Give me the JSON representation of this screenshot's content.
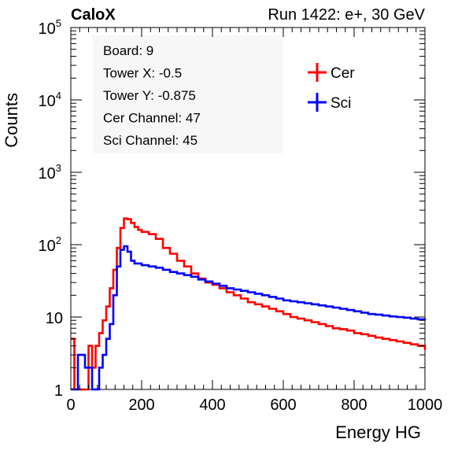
{
  "chart_data": {
    "type": "line",
    "title_left": "CaloX",
    "title_right": "Run 1422: e+, 30 GeV",
    "xlabel": "Energy HG",
    "ylabel": "Counts",
    "xlim": [
      0,
      1000
    ],
    "ylim": [
      1,
      100000
    ],
    "yscale": "log",
    "x_ticks": [
      "0",
      "200",
      "400",
      "600",
      "800",
      "1000"
    ],
    "y_ticks": [
      {
        "value": 1,
        "base": "1",
        "exp": ""
      },
      {
        "value": 10,
        "base": "10",
        "exp": ""
      },
      {
        "value": 100,
        "base": "10",
        "exp": "2"
      },
      {
        "value": 1000,
        "base": "10",
        "exp": "3"
      },
      {
        "value": 10000,
        "base": "10",
        "exp": "4"
      },
      {
        "value": 100000,
        "base": "10",
        "exp": "5"
      }
    ],
    "info_box": [
      "Board: 9",
      "Tower X: -0.5",
      "Tower Y: -0.875",
      "Cer Channel: 47",
      "Sci Channel: 45"
    ],
    "legend_position": "top-right",
    "grid": false,
    "series": [
      {
        "name": "Cer",
        "color": "#ff0000",
        "points": [
          [
            0,
            5
          ],
          [
            10,
            1
          ],
          [
            20,
            1
          ],
          [
            40,
            1
          ],
          [
            50,
            4
          ],
          [
            60,
            2
          ],
          [
            70,
            4
          ],
          [
            80,
            6
          ],
          [
            90,
            9
          ],
          [
            100,
            14
          ],
          [
            110,
            25
          ],
          [
            120,
            45
          ],
          [
            130,
            90
          ],
          [
            140,
            170
          ],
          [
            150,
            230
          ],
          [
            160,
            225
          ],
          [
            170,
            200
          ],
          [
            180,
            175
          ],
          [
            190,
            160
          ],
          [
            200,
            150
          ],
          [
            220,
            140
          ],
          [
            240,
            120
          ],
          [
            260,
            90
          ],
          [
            280,
            75
          ],
          [
            300,
            60
          ],
          [
            320,
            50
          ],
          [
            340,
            40
          ],
          [
            360,
            34
          ],
          [
            380,
            30
          ],
          [
            400,
            28
          ],
          [
            420,
            25
          ],
          [
            440,
            22
          ],
          [
            460,
            20
          ],
          [
            480,
            18
          ],
          [
            500,
            16
          ],
          [
            520,
            15
          ],
          [
            540,
            14
          ],
          [
            560,
            13
          ],
          [
            580,
            12
          ],
          [
            600,
            11
          ],
          [
            620,
            10
          ],
          [
            640,
            9.5
          ],
          [
            660,
            9
          ],
          [
            680,
            8.5
          ],
          [
            700,
            8
          ],
          [
            720,
            7.5
          ],
          [
            740,
            7
          ],
          [
            760,
            6.8
          ],
          [
            780,
            6.5
          ],
          [
            800,
            6
          ],
          [
            820,
            5.8
          ],
          [
            840,
            5.5
          ],
          [
            860,
            5.2
          ],
          [
            880,
            5
          ],
          [
            900,
            4.8
          ],
          [
            920,
            4.6
          ],
          [
            940,
            4.4
          ],
          [
            960,
            4.2
          ],
          [
            980,
            4
          ],
          [
            1000,
            3.5
          ]
        ]
      },
      {
        "name": "Sci",
        "color": "#0000ff",
        "points": [
          [
            0,
            1
          ],
          [
            20,
            3
          ],
          [
            40,
            2
          ],
          [
            60,
            1
          ],
          [
            70,
            1
          ],
          [
            80,
            2
          ],
          [
            90,
            3
          ],
          [
            100,
            5
          ],
          [
            110,
            8
          ],
          [
            120,
            20
          ],
          [
            130,
            50
          ],
          [
            140,
            85
          ],
          [
            150,
            95
          ],
          [
            160,
            80
          ],
          [
            170,
            60
          ],
          [
            180,
            55
          ],
          [
            200,
            52
          ],
          [
            220,
            50
          ],
          [
            240,
            48
          ],
          [
            260,
            45
          ],
          [
            280,
            42
          ],
          [
            300,
            40
          ],
          [
            320,
            38
          ],
          [
            340,
            36
          ],
          [
            360,
            33
          ],
          [
            380,
            31
          ],
          [
            400,
            29
          ],
          [
            420,
            27
          ],
          [
            440,
            25
          ],
          [
            460,
            24
          ],
          [
            480,
            23
          ],
          [
            500,
            22
          ],
          [
            520,
            21
          ],
          [
            540,
            20
          ],
          [
            560,
            19
          ],
          [
            580,
            18
          ],
          [
            600,
            17
          ],
          [
            620,
            16.5
          ],
          [
            640,
            16
          ],
          [
            660,
            15.5
          ],
          [
            680,
            15
          ],
          [
            700,
            14.5
          ],
          [
            720,
            14
          ],
          [
            740,
            13.5
          ],
          [
            760,
            13
          ],
          [
            780,
            12.5
          ],
          [
            800,
            12
          ],
          [
            820,
            11.5
          ],
          [
            840,
            11
          ],
          [
            860,
            10.8
          ],
          [
            880,
            10.5
          ],
          [
            900,
            10.2
          ],
          [
            920,
            10
          ],
          [
            940,
            9.8
          ],
          [
            960,
            9.5
          ],
          [
            980,
            9.3
          ],
          [
            1000,
            9
          ]
        ]
      }
    ]
  }
}
